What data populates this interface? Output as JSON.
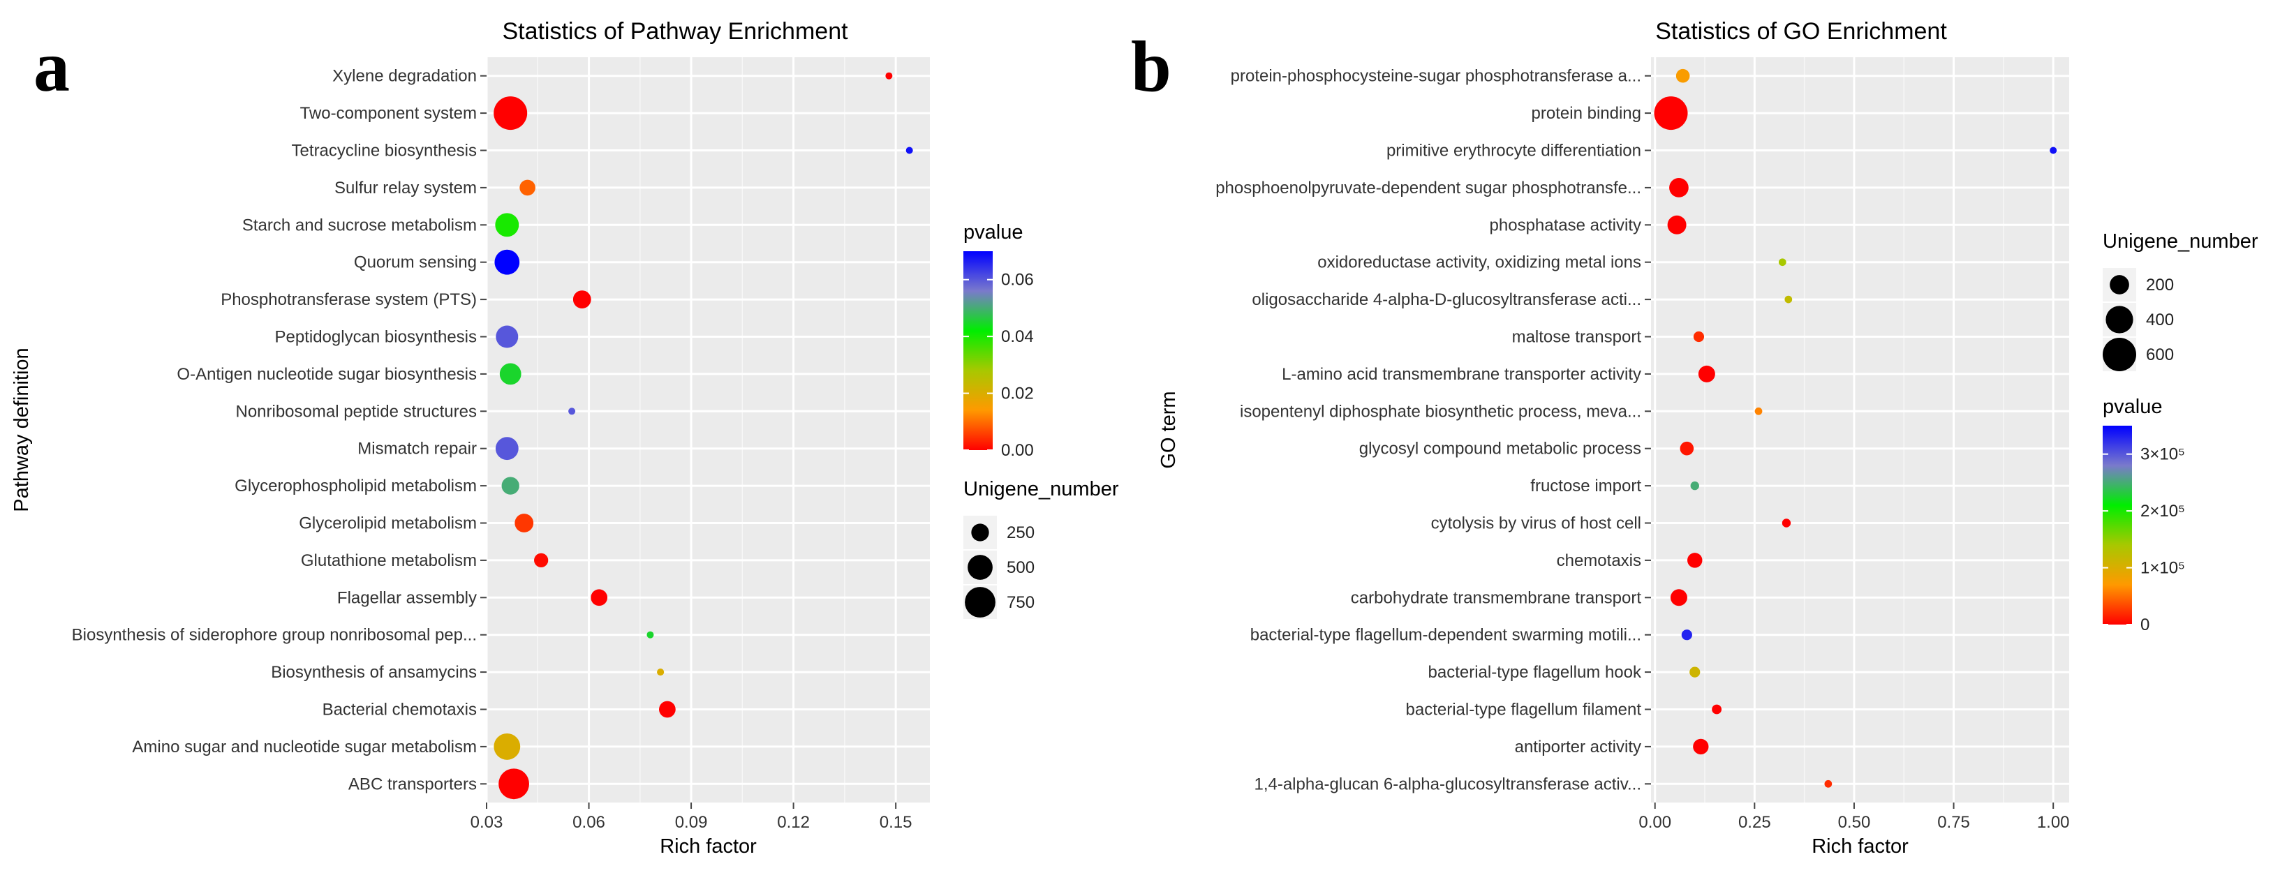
{
  "panel_labels": [
    "a",
    "b"
  ],
  "chart_data": [
    {
      "type": "scatter",
      "title": "Statistics of Pathway Enrichment",
      "xlabel": "Rich factor",
      "ylabel": "Pathway definition",
      "xlim": [
        0.03,
        0.16
      ],
      "xticks": [
        0.03,
        0.06,
        0.09,
        0.12,
        0.15
      ],
      "xtick_labels": [
        "0.03",
        "0.06",
        "0.09",
        "0.12",
        "0.15"
      ],
      "categories": [
        "Xylene degradation",
        "Two-component system",
        "Tetracycline biosynthesis",
        "Sulfur relay system",
        "Starch and sucrose metabolism",
        "Quorum sensing",
        "Phosphotransferase system (PTS)",
        "Peptidoglycan biosynthesis",
        "O-Antigen nucleotide sugar biosynthesis",
        "Nonribosomal peptide structures",
        "Mismatch repair",
        "Glycerophospholipid metabolism",
        "Glycerolipid metabolism",
        "Glutathione metabolism",
        "Flagellar assembly",
        "Biosynthesis of siderophore group nonribosomal pep...",
        "Biosynthesis of ansamycins",
        "Bacterial chemotaxis",
        "Amino sugar and nucleotide sugar metabolism",
        "ABC transporters"
      ],
      "x": [
        0.148,
        0.037,
        0.154,
        0.042,
        0.036,
        0.036,
        0.058,
        0.036,
        0.037,
        0.055,
        0.036,
        0.037,
        0.041,
        0.046,
        0.063,
        0.078,
        0.081,
        0.083,
        0.036,
        0.038
      ],
      "size": [
        30,
        900,
        30,
        200,
        450,
        500,
        260,
        400,
        370,
        30,
        420,
        250,
        280,
        160,
        220,
        30,
        40,
        220,
        560,
        750
      ],
      "pvalue": [
        0.0,
        0.0,
        0.068,
        0.009,
        0.04,
        0.07,
        0.0,
        0.06,
        0.045,
        0.06,
        0.06,
        0.05,
        0.005,
        0.001,
        0.0,
        0.045,
        0.02,
        0.0,
        0.02,
        0.0
      ],
      "color_legend": {
        "title": "pvalue",
        "range": [
          0,
          0.07
        ],
        "ticks": [
          0.0,
          0.02,
          0.04,
          0.06
        ],
        "tick_labels": [
          "0.00",
          "0.02",
          "0.04",
          "0.06"
        ],
        "colors": [
          "#ff0000",
          "#ff9900",
          "#a8c800",
          "#00ee00",
          "#7a7acc",
          "#0000ff"
        ]
      },
      "size_legend": {
        "title": "Unigene_number",
        "values": [
          250,
          500,
          750
        ],
        "labels": [
          "250",
          "500",
          "750"
        ]
      }
    },
    {
      "type": "scatter",
      "title": "Statistics of GO Enrichment",
      "xlabel": "Rich factor",
      "ylabel": "GO term",
      "xlim": [
        -0.01,
        1.04
      ],
      "xticks": [
        0.0,
        0.25,
        0.5,
        0.75,
        1.0
      ],
      "xtick_labels": [
        "0.00",
        "0.25",
        "0.50",
        "0.75",
        "1.00"
      ],
      "categories": [
        "protein-phosphocysteine-sugar phosphotransferase a...",
        "protein binding",
        "primitive erythrocyte differentiation",
        "phosphoenolpyruvate-dependent sugar phosphotransfe...",
        "phosphatase activity",
        "oxidoreductase activity, oxidizing metal ions",
        "oligosaccharide 4-alpha-D-glucosyltransferase acti...",
        "maltose transport",
        "L-amino acid transmembrane transporter activity",
        "isopentenyl diphosphate biosynthetic process, meva...",
        "glycosyl compound metabolic process",
        "fructose import",
        "cytolysis by virus of host cell",
        "chemotaxis",
        "carbohydrate transmembrane transport",
        "bacterial-type flagellum-dependent swarming motili...",
        "bacterial-type flagellum hook",
        "bacterial-type flagellum filament",
        "antiporter activity",
        "1,4-alpha-glucan 6-alpha-glucosyltransferase activ..."
      ],
      "x": [
        0.07,
        0.04,
        1.0,
        0.06,
        0.055,
        0.32,
        0.335,
        0.11,
        0.13,
        0.26,
        0.08,
        0.1,
        0.33,
        0.1,
        0.06,
        0.08,
        0.1,
        0.155,
        0.115,
        0.435
      ],
      "size": [
        100,
        600,
        20,
        200,
        190,
        30,
        30,
        60,
        150,
        30,
        100,
        40,
        40,
        120,
        150,
        60,
        60,
        50,
        130,
        30
      ],
      "pvalue": [
        75000,
        0,
        340000,
        0,
        0,
        140000,
        120000,
        20000,
        0,
        60000,
        10000,
        250000,
        0,
        0,
        0,
        330000,
        110000,
        0,
        0,
        20000
      ],
      "color_legend": {
        "title": "pvalue",
        "range": [
          0,
          350000
        ],
        "ticks": [
          0,
          100000,
          200000,
          300000
        ],
        "tick_labels": [
          "0",
          "1×10⁵",
          "2×10⁵",
          "3×10⁵"
        ],
        "colors": [
          "#ff0000",
          "#ff9900",
          "#a8c800",
          "#00ee00",
          "#7a7acc",
          "#0000ff"
        ]
      },
      "size_legend": {
        "title": "Unigene_number",
        "values": [
          200,
          400,
          600
        ],
        "labels": [
          "200",
          "400",
          "600"
        ]
      }
    }
  ]
}
